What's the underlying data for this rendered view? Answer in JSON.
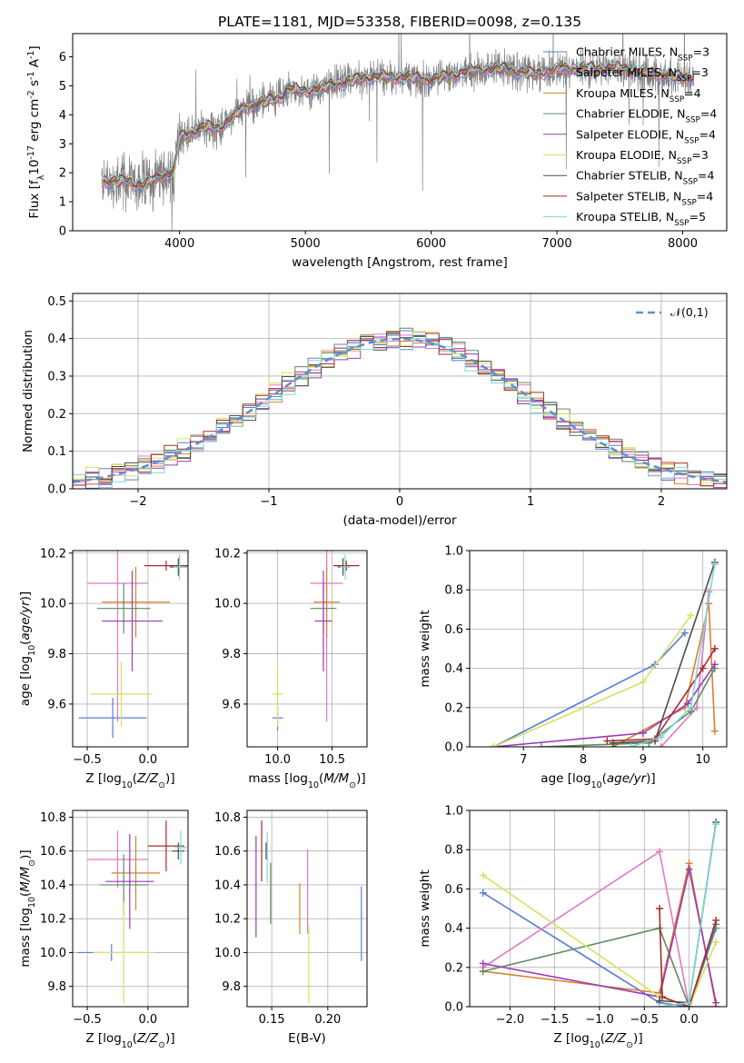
{
  "figure": {
    "title": "PLATE=1181, MJD=53358, FIBERID=0098, z=0.135"
  },
  "chart_data": [
    {
      "id": "spectrum",
      "type": "line",
      "xlabel": "wavelength [Angstrom, rest frame]",
      "ylabel": "Flux [f$_\\lambda$10$^{-17}$ erg cm$^{-2}$ s$^{-1}$ A$^{-1}$]",
      "xlim": [
        3150,
        8350
      ],
      "ylim": [
        0,
        6.8
      ],
      "xticks": [
        4000,
        5000,
        6000,
        7000,
        8000
      ],
      "yticks": [
        0,
        1,
        2,
        3,
        4,
        5,
        6
      ],
      "grid": false,
      "legend_position": "upper right",
      "data_color": "#808080",
      "data_wavelength_range": [
        3380,
        8090
      ],
      "continuum_anchors": {
        "wavelength": [
          3380,
          3600,
          3700,
          3850,
          3950,
          4000,
          4200,
          4300,
          4500,
          4800,
          4860,
          5000,
          5200,
          5500,
          5800,
          6000,
          6300,
          6563,
          6800,
          7100,
          7500,
          7800,
          8000,
          8090
        ],
        "flux": [
          1.7,
          1.7,
          1.55,
          1.9,
          2.0,
          3.2,
          3.6,
          3.5,
          4.2,
          4.6,
          4.9,
          4.8,
          5.0,
          5.3,
          5.3,
          5.2,
          5.5,
          5.6,
          5.4,
          5.6,
          5.6,
          5.4,
          5.3,
          5.3
        ]
      },
      "series": [
        {
          "name": "Chabrier MILES, N$_{SSP}$=3",
          "color": "#5b7bd6"
        },
        {
          "name": "Salpeter MILES, N$_{SSP}$=3",
          "color": "#e178c5"
        },
        {
          "name": "Kroupa MILES, N$_{SSP}$=4",
          "color": "#d9802f"
        },
        {
          "name": "Chabrier ELODIE, N$_{SSP}$=4",
          "color": "#5f8a62"
        },
        {
          "name": "Salpeter ELODIE, N$_{SSP}$=4",
          "color": "#9b39b8"
        },
        {
          "name": "Kroupa ELODIE, N$_{SSP}$=3",
          "color": "#d2e35c"
        },
        {
          "name": "Chabrier STELIB, N$_{SSP}$=4",
          "color": "#4d4d4d"
        },
        {
          "name": "Salpeter STELIB, N$_{SSP}$=4",
          "color": "#a52a2a"
        },
        {
          "name": "Kroupa STELIB, N$_{SSP}$=5",
          "color": "#7ed7d8"
        }
      ]
    },
    {
      "id": "residuals",
      "type": "area",
      "xlabel": "(data-model)/error",
      "ylabel": "Normed distribution",
      "xlim": [
        -2.5,
        2.5
      ],
      "ylim": [
        0,
        0.52
      ],
      "xticks": [
        -2,
        -1,
        0,
        1,
        2
      ],
      "yticks": [
        0.0,
        0.1,
        0.2,
        0.3,
        0.4,
        0.5
      ],
      "grid": true,
      "legend_position": "upper right",
      "reference_curve": {
        "name": "$\\mathcal{N}(0,1)$",
        "color": "#5b8fd6",
        "style": "dashed",
        "mean": 0,
        "sigma": 1
      },
      "bin_width": 0.1,
      "series_offsets": [
        0.0,
        0.012,
        -0.008,
        0.018,
        -0.014,
        0.025,
        -0.01,
        0.015,
        -0.018
      ]
    },
    {
      "id": "age_vs_Z",
      "type": "scatter",
      "xlabel": "Z [log$_{10}$($Z/Z_\\odot$)]",
      "ylabel": "age  [log$_{10}$($age/yr$)]",
      "xlim": [
        -0.62,
        0.33
      ],
      "ylim": [
        9.43,
        10.21
      ],
      "xticks": [
        -0.5,
        0.0
      ],
      "yticks": [
        9.6,
        9.8,
        10.0,
        10.2
      ],
      "grid": true,
      "points": [
        {
          "x": -0.29,
          "xerr": 0.28,
          "y": 9.545,
          "yerr": 0.08
        },
        {
          "x": -0.25,
          "xerr": 0.25,
          "y": 10.08,
          "yerr": 0.55
        },
        {
          "x": -0.1,
          "xerr": 0.28,
          "y": 10.005,
          "yerr": 0.14
        },
        {
          "x": -0.2,
          "xerr": 0.22,
          "y": 9.98,
          "yerr": 0.1
        },
        {
          "x": -0.13,
          "xerr": 0.25,
          "y": 9.93,
          "yerr": 0.2
        },
        {
          "x": -0.22,
          "xerr": 0.25,
          "y": 9.64,
          "yerr": 0.13
        },
        {
          "x": 0.25,
          "xerr": 0.07,
          "y": 10.145,
          "yerr": 0.035
        },
        {
          "x": 0.15,
          "xerr": 0.18,
          "y": 10.15,
          "yerr": 0.02
        },
        {
          "x": 0.26,
          "xerr": 0.05,
          "y": 10.145,
          "yerr": 0.05
        }
      ]
    },
    {
      "id": "age_vs_mass",
      "type": "scatter",
      "xlabel": "mass [log$_{10}$($M/M_\\odot$)]",
      "ylabel": "",
      "xlim": [
        9.72,
        10.82
      ],
      "ylim": [
        9.43,
        10.21
      ],
      "xticks": [
        10.0,
        10.5
      ],
      "yticks": [
        9.6,
        9.8,
        10.0,
        10.2
      ],
      "grid": true,
      "points": [
        {
          "x": 10.0,
          "xerr": 0.05,
          "y": 9.545,
          "yerr": 0.05
        },
        {
          "x": 10.45,
          "xerr": 0.15,
          "y": 10.08,
          "yerr": 0.55
        },
        {
          "x": 10.45,
          "xerr": 0.12,
          "y": 10.005,
          "yerr": 0.14
        },
        {
          "x": 10.42,
          "xerr": 0.12,
          "y": 9.98,
          "yerr": 0.1
        },
        {
          "x": 10.42,
          "xerr": 0.08,
          "y": 9.93,
          "yerr": 0.2
        },
        {
          "x": 10.0,
          "xerr": 0.05,
          "y": 9.64,
          "yerr": 0.13
        },
        {
          "x": 10.6,
          "xerr": 0.05,
          "y": 10.145,
          "yerr": 0.035
        },
        {
          "x": 10.63,
          "xerr": 0.12,
          "y": 10.15,
          "yerr": 0.02
        },
        {
          "x": 10.62,
          "xerr": 0.05,
          "y": 10.145,
          "yerr": 0.05
        }
      ]
    },
    {
      "id": "mw_vs_age",
      "type": "line",
      "xlabel": "age  [log$_{10}$($age/yr$)]",
      "ylabel": "mass weight",
      "xlim": [
        6.1,
        10.4
      ],
      "ylim": [
        0,
        1.0
      ],
      "xticks": [
        7,
        8,
        9,
        10
      ],
      "yticks": [
        0.0,
        0.2,
        0.4,
        0.6,
        0.8,
        1.0
      ],
      "grid": true,
      "series": [
        {
          "x": [
            6.5,
            9.2,
            9.7
          ],
          "y": [
            0.0,
            0.42,
            0.58
          ]
        },
        {
          "x": [
            9.3,
            9.9,
            10.1
          ],
          "y": [
            0.0,
            0.2,
            0.79
          ]
        },
        {
          "x": [
            8.5,
            9.7,
            10.1,
            10.2
          ],
          "y": [
            0.0,
            0.2,
            0.73,
            0.08
          ]
        },
        {
          "x": [
            7.3,
            9.1,
            9.8,
            10.2
          ],
          "y": [
            0.0,
            0.02,
            0.18,
            0.4
          ]
        },
        {
          "x": [
            6.5,
            9.0,
            9.75,
            10.2
          ],
          "y": [
            0.0,
            0.07,
            0.22,
            0.42
          ]
        },
        {
          "x": [
            6.5,
            9.0,
            9.8
          ],
          "y": [
            0.0,
            0.33,
            0.67
          ]
        },
        {
          "x": [
            8.5,
            9.2,
            10.2
          ],
          "y": [
            0.02,
            0.03,
            0.94
          ]
        },
        {
          "x": [
            8.4,
            9.2,
            10.0,
            10.2
          ],
          "y": [
            0.03,
            0.04,
            0.4,
            0.5
          ]
        },
        {
          "x": [
            8.8,
            9.3,
            9.8,
            10.2
          ],
          "y": [
            0.0,
            0.05,
            0.2,
            0.93
          ]
        }
      ]
    },
    {
      "id": "mass_vs_Z",
      "type": "scatter",
      "xlabel": "Z [log$_{10}$($Z/Z_\\odot$)]",
      "ylabel": "mass [log$_{10}$($M/M_\\odot$)]",
      "xlim": [
        -0.62,
        0.33
      ],
      "ylim": [
        9.68,
        10.84
      ],
      "xticks": [
        -0.5,
        0.0
      ],
      "yticks": [
        9.8,
        10.0,
        10.2,
        10.4,
        10.6,
        10.8
      ],
      "grid": true,
      "points": [
        {
          "x": -0.3,
          "xerr": 0.28,
          "y": 10.0,
          "yerr": 0.05
        },
        {
          "x": -0.25,
          "xerr": 0.25,
          "y": 10.55,
          "yerr": 0.17
        },
        {
          "x": -0.1,
          "xerr": 0.2,
          "y": 10.47,
          "yerr": 0.22
        },
        {
          "x": -0.2,
          "xerr": 0.2,
          "y": 10.4,
          "yerr": 0.18
        },
        {
          "x": -0.15,
          "xerr": 0.2,
          "y": 10.42,
          "yerr": 0.28
        },
        {
          "x": -0.2,
          "xerr": 0.25,
          "y": 10.0,
          "yerr": 0.3
        },
        {
          "x": 0.25,
          "xerr": 0.05,
          "y": 10.6,
          "yerr": 0.05
        },
        {
          "x": 0.15,
          "xerr": 0.15,
          "y": 10.63,
          "yerr": 0.15
        },
        {
          "x": 0.27,
          "xerr": 0.05,
          "y": 10.62,
          "yerr": 0.1
        }
      ]
    },
    {
      "id": "mass_vs_ebv",
      "type": "scatter",
      "xlabel": "E(B-V)",
      "ylabel": "",
      "xlim": [
        0.128,
        0.235
      ],
      "ylim": [
        9.68,
        10.84
      ],
      "xticks": [
        0.15,
        0.2
      ],
      "yticks": [
        9.8,
        10.0,
        10.2,
        10.4,
        10.6,
        10.8
      ],
      "grid": true,
      "points": [
        {
          "x": 0.23,
          "y": 10.17,
          "yerr": 0.22
        },
        {
          "x": 0.182,
          "y": 10.36,
          "yerr": 0.25
        },
        {
          "x": 0.175,
          "y": 10.26,
          "yerr": 0.15
        },
        {
          "x": 0.149,
          "y": 10.35,
          "yerr": 0.18
        },
        {
          "x": 0.136,
          "y": 10.39,
          "yerr": 0.3
        },
        {
          "x": 0.183,
          "y": 9.93,
          "yerr": 0.23
        },
        {
          "x": 0.145,
          "y": 10.6,
          "yerr": 0.05
        },
        {
          "x": 0.141,
          "y": 10.6,
          "yerr": 0.18
        },
        {
          "x": 0.146,
          "y": 10.56,
          "yerr": 0.15
        }
      ]
    },
    {
      "id": "mw_vs_Z",
      "type": "line",
      "xlabel": "Z [log$_{10}$($Z/Z_\\odot$)]",
      "ylabel": "mass weight",
      "xlim": [
        -2.45,
        0.42
      ],
      "ylim": [
        0,
        1.0
      ],
      "xticks": [
        -2.0,
        -1.5,
        -1.0,
        -0.5,
        0.0
      ],
      "yticks": [
        0.0,
        0.2,
        0.4,
        0.6,
        0.8,
        1.0
      ],
      "grid": true,
      "series": [
        {
          "x": [
            -2.3,
            -0.33,
            0.0,
            0.3
          ],
          "y": [
            0.58,
            0.02,
            0.0,
            0.4
          ]
        },
        {
          "x": [
            -2.3,
            -0.33,
            0.0,
            0.3
          ],
          "y": [
            0.2,
            0.79,
            0.0,
            0.0
          ]
        },
        {
          "x": [
            -2.3,
            -0.33,
            0.0,
            0.3
          ],
          "y": [
            0.18,
            0.07,
            0.73,
            0.0
          ]
        },
        {
          "x": [
            -2.3,
            -0.33,
            0.0,
            0.3
          ],
          "y": [
            0.18,
            0.4,
            0.0,
            0.42
          ]
        },
        {
          "x": [
            -2.3,
            -0.33,
            0.0,
            0.3
          ],
          "y": [
            0.22,
            0.05,
            0.7,
            0.02
          ]
        },
        {
          "x": [
            -2.3,
            -0.33,
            0.0,
            0.3
          ],
          "y": [
            0.67,
            0.05,
            0.0,
            0.33
          ]
        },
        {
          "x": [
            -0.33,
            0.0,
            0.3
          ],
          "y": [
            0.03,
            0.02,
            0.94
          ]
        },
        {
          "x": [
            -0.33,
            -0.3,
            0.0,
            0.3
          ],
          "y": [
            0.5,
            0.05,
            0.0,
            0.44
          ]
        },
        {
          "x": [
            -0.33,
            0.0,
            0.3
          ],
          "y": [
            0.0,
            0.02,
            0.93
          ]
        }
      ]
    }
  ]
}
